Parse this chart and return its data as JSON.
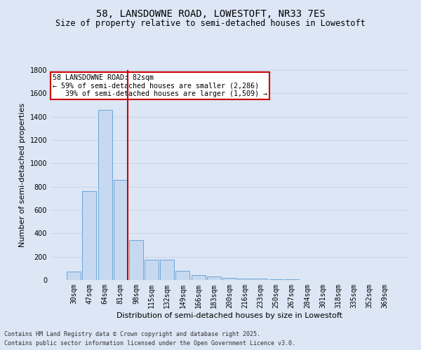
{
  "title1": "58, LANSDOWNE ROAD, LOWESTOFT, NR33 7ES",
  "title2": "Size of property relative to semi-detached houses in Lowestoft",
  "xlabel": "Distribution of semi-detached houses by size in Lowestoft",
  "ylabel": "Number of semi-detached properties",
  "categories": [
    "30sqm",
    "47sqm",
    "64sqm",
    "81sqm",
    "98sqm",
    "115sqm",
    "132sqm",
    "149sqm",
    "166sqm",
    "183sqm",
    "200sqm",
    "216sqm",
    "233sqm",
    "250sqm",
    "267sqm",
    "284sqm",
    "301sqm",
    "318sqm",
    "335sqm",
    "352sqm",
    "369sqm"
  ],
  "values": [
    75,
    760,
    1460,
    860,
    340,
    175,
    175,
    80,
    45,
    30,
    20,
    15,
    10,
    8,
    5,
    3,
    2,
    2,
    2,
    2,
    2
  ],
  "bar_color": "#c6d9f0",
  "bar_edge_color": "#5b9bd5",
  "vline_color": "#cc0000",
  "annotation_text": "58 LANSDOWNE ROAD: 82sqm\n← 59% of semi-detached houses are smaller (2,286)\n   39% of semi-detached houses are larger (1,509) →",
  "annotation_box_color": "#ffffff",
  "annotation_box_edge": "#cc0000",
  "ylim": [
    0,
    1800
  ],
  "yticks": [
    0,
    200,
    400,
    600,
    800,
    1000,
    1200,
    1400,
    1600,
    1800
  ],
  "grid_color": "#c8d4e8",
  "background_color": "#dce6f5",
  "footer1": "Contains HM Land Registry data © Crown copyright and database right 2025.",
  "footer2": "Contains public sector information licensed under the Open Government Licence v3.0.",
  "title_fontsize": 10,
  "subtitle_fontsize": 8.5,
  "axis_label_fontsize": 8,
  "tick_fontsize": 7,
  "footer_fontsize": 6
}
